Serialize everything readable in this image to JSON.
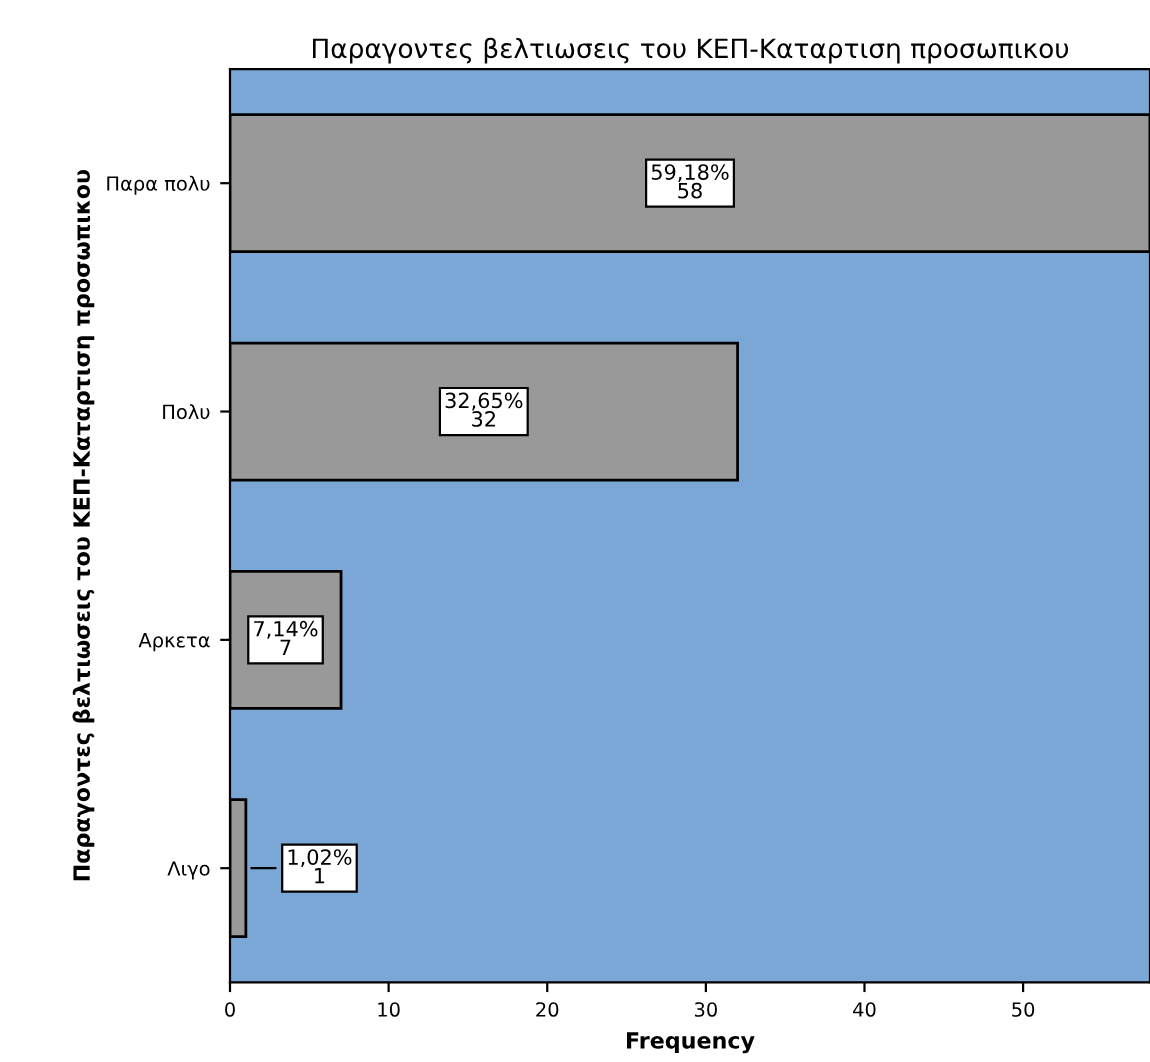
{
  "chart_data": {
    "type": "bar",
    "orientation": "horizontal",
    "title": "Παραγοντες βελτιωσεις του ΚΕΠ-Καταρτιση προσωπικου",
    "ylabel": "Παραγοντες βελτιωσεις του ΚΕΠ-Καταρτιση προσωπικου",
    "xlabel": "Frequency",
    "categories": [
      "Παρα πολυ",
      "Πολυ",
      "Αρκετα",
      "Λιγο"
    ],
    "values": [
      58,
      32,
      7,
      1
    ],
    "color": "#999999",
    "value_labels": [
      "59,18%\n58",
      "32,65%\n32",
      "7,14%\n7",
      "1,02%\n1"
    ],
    "xlim": [
      0,
      58
    ],
    "xticks": [
      0,
      10,
      20,
      30,
      40,
      50
    ],
    "grid": false
  }
}
